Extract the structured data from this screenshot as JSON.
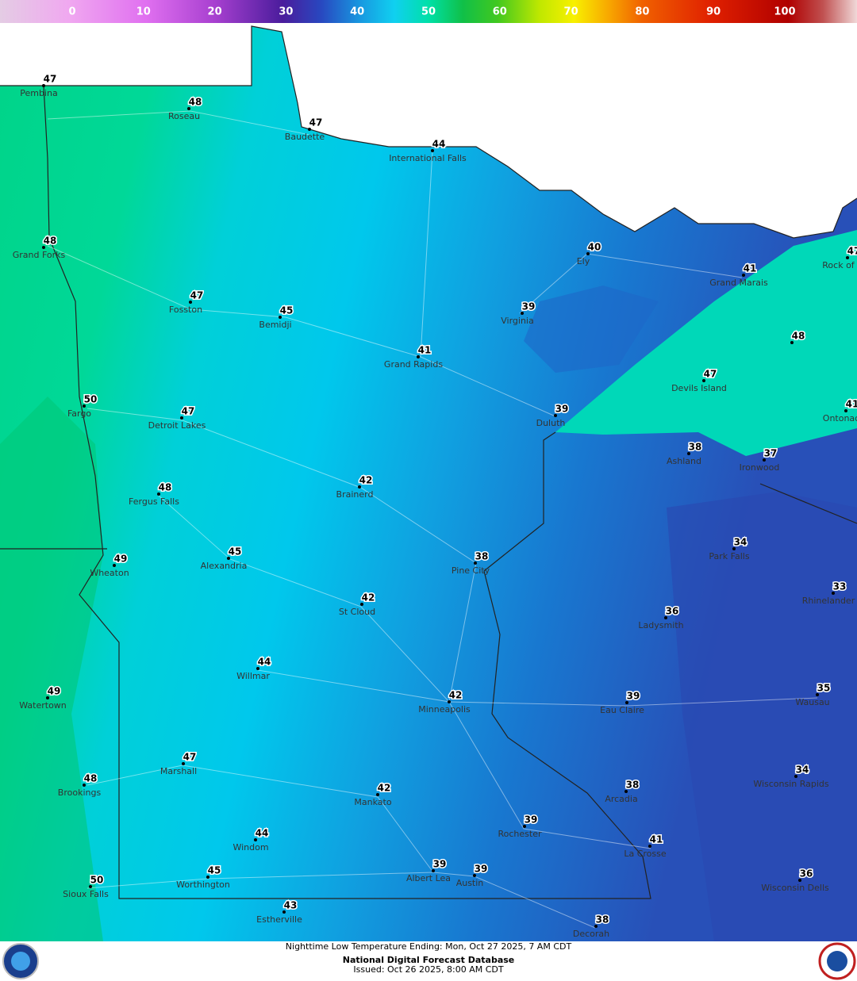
{
  "colorbar": {
    "ticks": [
      0,
      10,
      20,
      30,
      40,
      50,
      60,
      70,
      80,
      90,
      100
    ]
  },
  "cities": [
    {
      "name": "Pembina",
      "temp": 47
    },
    {
      "name": "Roseau",
      "temp": 48
    },
    {
      "name": "Baudette",
      "temp": 47
    },
    {
      "name": "International Falls",
      "temp": 44
    },
    {
      "name": "Grand Forks",
      "temp": 48
    },
    {
      "name": "Ely",
      "temp": 40
    },
    {
      "name": "Rock of A",
      "temp": 47
    },
    {
      "name": "Grand Marais",
      "temp": 41
    },
    {
      "name": "Fosston",
      "temp": 47
    },
    {
      "name": "Bemidji",
      "temp": 45
    },
    {
      "name": "Virginia",
      "temp": 39
    },
    {
      "name": null,
      "temp": 48
    },
    {
      "name": "Grand Rapids",
      "temp": 41
    },
    {
      "name": "Devils Island",
      "temp": 47
    },
    {
      "name": "Fargo",
      "temp": 50
    },
    {
      "name": "Detroit Lakes",
      "temp": 47
    },
    {
      "name": "Duluth",
      "temp": 39
    },
    {
      "name": "Ontonac",
      "temp": 41
    },
    {
      "name": "Ashland",
      "temp": 38
    },
    {
      "name": "Ironwood",
      "temp": 37
    },
    {
      "name": "Brainerd",
      "temp": 42
    },
    {
      "name": "Fergus Falls",
      "temp": 48
    },
    {
      "name": "Park Falls",
      "temp": 34
    },
    {
      "name": "Alexandria",
      "temp": 45
    },
    {
      "name": "Wheaton",
      "temp": 49
    },
    {
      "name": "Pine City",
      "temp": 38
    },
    {
      "name": "Rhinelander",
      "temp": 33
    },
    {
      "name": "St Cloud",
      "temp": 42
    },
    {
      "name": "Ladysmith",
      "temp": 36
    },
    {
      "name": "Willmar",
      "temp": 44
    },
    {
      "name": "Wausau",
      "temp": 35
    },
    {
      "name": "Minneapolis",
      "temp": 42
    },
    {
      "name": "Eau Claire",
      "temp": 39
    },
    {
      "name": "Watertown",
      "temp": 49
    },
    {
      "name": "Marshall",
      "temp": 47
    },
    {
      "name": "Wisconsin Rapids",
      "temp": 34
    },
    {
      "name": "Brookings",
      "temp": 48
    },
    {
      "name": "Arcadia",
      "temp": 38
    },
    {
      "name": "Mankato",
      "temp": 42
    },
    {
      "name": "Rochester",
      "temp": 39
    },
    {
      "name": "Windom",
      "temp": 44
    },
    {
      "name": "La Crosse",
      "temp": 41
    },
    {
      "name": "Albert Lea",
      "temp": 39
    },
    {
      "name": "Austin",
      "temp": 39
    },
    {
      "name": "Worthington",
      "temp": 45
    },
    {
      "name": "Wisconsin Dells",
      "temp": 36
    },
    {
      "name": "Sioux Falls",
      "temp": 50
    },
    {
      "name": "Estherville",
      "temp": 43
    },
    {
      "name": "Decorah",
      "temp": 38
    }
  ],
  "footer": {
    "title": "Nighttime Low Temperature Ending: Mon, Oct 27 2025, 7 AM CDT",
    "source": "National Digital Forecast Database",
    "issued": "Issued: Oct 26 2025, 8:00 AM CDT"
  }
}
